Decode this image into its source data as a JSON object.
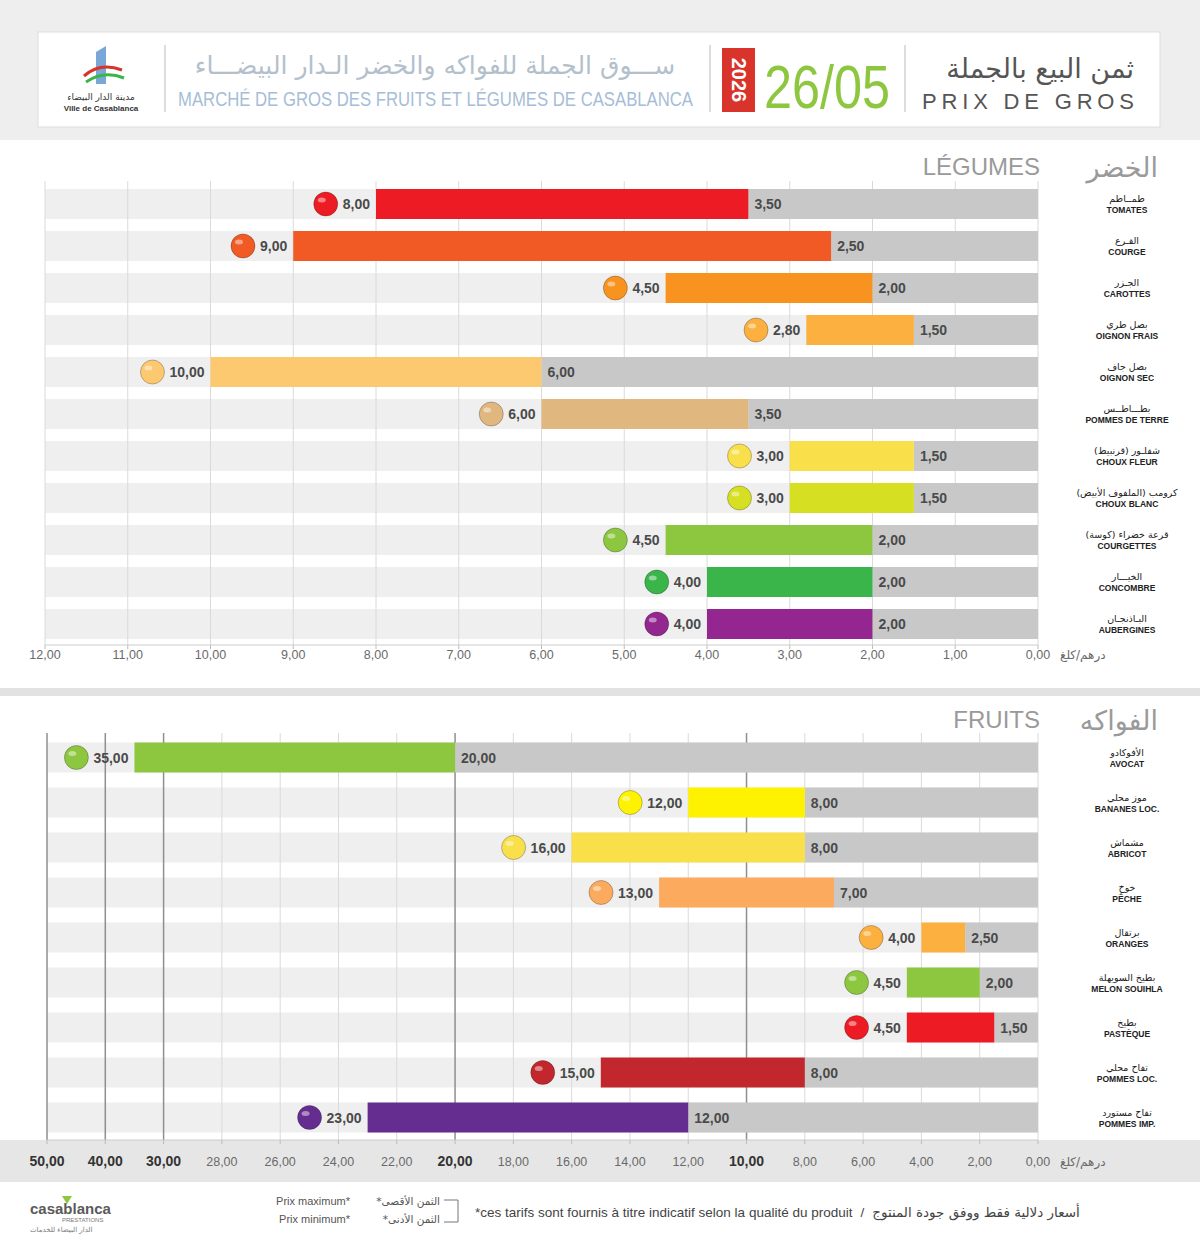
{
  "header": {
    "logo": [
      "مدينة الدار البيضاء",
      "Ville de Casablanca"
    ],
    "title_ar": "ســـوق الجملة للفواكه والخضر الـدار البيضـــاء",
    "title_fr": "MARCHÉ DE GROS DES FRUITS ET LÉGUMES DE CASABLANCA",
    "year": "2026",
    "date": "26/05",
    "heading_ar": "ثمن البيع بالجملة",
    "heading_fr": "PRIX DE GROS"
  },
  "chart_data": [
    {
      "type": "bar",
      "title": "LÉGUMES",
      "subtitle": "الخضر",
      "orientation": "horizontal",
      "data_labels": true,
      "grid": true,
      "legend": "bottom",
      "xlabel": "درهم/كلغ",
      "xlim": [
        12,
        0
      ],
      "xticks": [
        {
          "value": 12,
          "label": "12,00"
        },
        {
          "value": 11,
          "label": "11,00"
        },
        {
          "value": 10,
          "label": "10,00"
        },
        {
          "value": 9,
          "label": "9,00"
        },
        {
          "value": 8,
          "label": "8,00"
        },
        {
          "value": 7,
          "label": "7,00"
        },
        {
          "value": 6,
          "label": "6,00"
        },
        {
          "value": 5,
          "label": "5,00"
        },
        {
          "value": 4,
          "label": "4,00"
        },
        {
          "value": 3,
          "label": "3,00"
        },
        {
          "value": 2,
          "label": "2,00"
        },
        {
          "value": 1,
          "label": "1,00"
        },
        {
          "value": 0,
          "label": "0,00"
        }
      ],
      "categories": [
        "طمــاطم\nTOMATES",
        "القـرع\nCOURGE",
        "الجـزر\nCAROTTES",
        "بصل طري\nOIGNON FRAIS",
        "بصل جاف\nOIGNON SEC",
        "بطـــاطــس\nPOMMES DE TERRE",
        "شفلـور (قرنبيط)\nCHOUX FLEUR",
        "كرومب (الملفوف الأبيض)\nCHOUX BLANC",
        "قرعة خضراء (كوسة)\nCOURGETTES",
        "الخيـــار\nCONCOMBRE",
        "البـاذنجـان\nAUBERGINES"
      ],
      "series": [
        {
          "name": "Prix minimum*",
          "color": "#c8c8c8",
          "values": [
            3.5,
            2.5,
            2,
            1.5,
            6,
            3.5,
            1.5,
            1.5,
            2,
            2,
            2
          ],
          "value_labels": [
            "3,50",
            "2,50",
            "2,00",
            "1,50",
            "6,00",
            "3,50",
            "1,50",
            "1,50",
            "2,00",
            "2,00",
            "2,00"
          ]
        },
        {
          "name": "Prix maximum*",
          "colors": [
            "#ed1c24",
            "#f15a24",
            "#f7931e",
            "#fbb040",
            "#fdc970",
            "#dfb77f",
            "#f9e04b",
            "#d7df23",
            "#8dc63f",
            "#39b54a",
            "#93278f"
          ],
          "values": [
            8,
            9,
            4.5,
            2.8,
            10,
            6,
            3,
            3,
            4.5,
            4,
            4
          ],
          "value_labels": [
            "8,00",
            "9,00",
            "4,50",
            "2,80",
            "10,00",
            "6,00",
            "3,00",
            "3,00",
            "4,50",
            "4,00",
            "4,00"
          ]
        }
      ]
    },
    {
      "type": "bar",
      "title": "FRUITS",
      "subtitle": "الفواكه",
      "orientation": "horizontal",
      "data_labels": true,
      "grid": true,
      "xlabel": "درهم/كلغ",
      "xlim": [
        50,
        0
      ],
      "xticks": [
        {
          "value": 50,
          "label": "50,00"
        },
        {
          "value": 40,
          "label": "40,00"
        },
        {
          "value": 30,
          "label": "30,00"
        },
        {
          "value": 28,
          "label": "28,00"
        },
        {
          "value": 26,
          "label": "26,00"
        },
        {
          "value": 24,
          "label": "24,00"
        },
        {
          "value": 22,
          "label": "22,00"
        },
        {
          "value": 20,
          "label": "20,00"
        },
        {
          "value": 18,
          "label": "18,00"
        },
        {
          "value": 16,
          "label": "16,00"
        },
        {
          "value": 14,
          "label": "14,00"
        },
        {
          "value": 12,
          "label": "12,00"
        },
        {
          "value": 10,
          "label": "10,00"
        },
        {
          "value": 8,
          "label": "8,00"
        },
        {
          "value": 6,
          "label": "6,00"
        },
        {
          "value": 4,
          "label": "4,00"
        },
        {
          "value": 2,
          "label": "2,00"
        },
        {
          "value": 0,
          "label": "0,00"
        }
      ],
      "categories": [
        "الأفوكادو\nAVOCAT",
        "موز محلي\nBANANES LOC.",
        "مشماش\nABRICOT",
        "خوخ\nPÊCHE",
        "برتقال\nORANGES",
        "بطيخ السويهلة\nMELON SOUIHLA",
        "بطيخ\nPASTÈQUE",
        "تفاح محلي\nPOMMES LOC.",
        "تفاح مستورد\nPOMMES IMP."
      ],
      "series": [
        {
          "color": "#c8c8c8",
          "values": [
            20,
            8,
            8,
            7,
            2.5,
            2,
            1.5,
            8,
            12
          ],
          "value_labels": [
            "20,00",
            "8,00",
            "8,00",
            "7,00",
            "2,50",
            "2,00",
            "1,50",
            "8,00",
            "12,00"
          ]
        },
        {
          "colors": [
            "#8dc63f",
            "#fff200",
            "#f9e04b",
            "#fbaa5e",
            "#fbb040",
            "#8dc63f",
            "#ed1c24",
            "#c1272d",
            "#662d91"
          ],
          "values": [
            35,
            12,
            16,
            13,
            4,
            4.5,
            4.5,
            15,
            23
          ],
          "value_labels": [
            "35,00",
            "12,00",
            "16,00",
            "13,00",
            "4,00",
            "4,50",
            "4,50",
            "15,00",
            "23,00"
          ]
        }
      ]
    }
  ],
  "footer": {
    "logo": [
      "casablanca",
      "PRESTATIONS",
      "الدار البيضاء للخدمات"
    ],
    "legend_ar": [
      "*الثمن الأقصى",
      "*الثمن الأدنى"
    ],
    "note": [
      "*ces tarifs sont fournis à titre indicatif selon la qualité du produit",
      "/",
      "أسعار دلالية فقط ووفق جودة المنتوج"
    ]
  }
}
